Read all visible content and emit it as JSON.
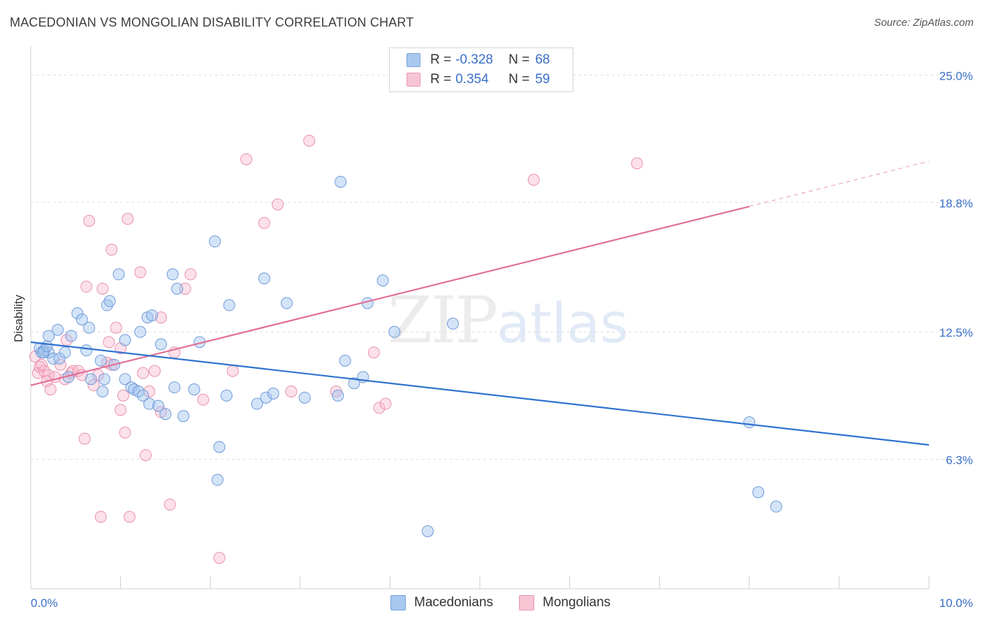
{
  "header": {
    "title": "MACEDONIAN VS MONGOLIAN DISABILITY CORRELATION CHART",
    "source": "Source: ZipAtlas.com"
  },
  "watermark": {
    "zip": "ZIP",
    "atlas": "atlas"
  },
  "legend": {
    "rows": [
      {
        "r_label": "R =",
        "r_value": "-0.328",
        "n_label": "N =",
        "n_value": "68",
        "color": "#a8c8f0"
      },
      {
        "r_label": "R =",
        "r_value": "0.354",
        "n_label": "N =",
        "n_value": "59",
        "color": "#f7b8cb"
      }
    ]
  },
  "bottom_legend": [
    {
      "label": "Macedonians",
      "color": "#a8c8f0"
    },
    {
      "label": "Mongolians",
      "color": "#f7b8cb"
    }
  ],
  "colors": {
    "blue_fill": "rgba(160,195,240,0.45)",
    "blue_stroke": "#6f9ad8",
    "blue_line": "#2f72d0",
    "pink_fill": "rgba(247,180,202,0.40)",
    "pink_stroke": "#e891ad",
    "pink_line": "#e07096",
    "tick_label": "#3a6fc8",
    "grid": "#dedede"
  },
  "chart_data": {
    "type": "scatter",
    "title": "MACEDONIAN VS MONGOLIAN DISABILITY CORRELATION CHART",
    "xlabel": "",
    "ylabel": "Disability",
    "xlim": [
      0,
      10
    ],
    "ylim": [
      0,
      26.2
    ],
    "x_tick_labels": [
      "0.0%",
      "10.0%"
    ],
    "y_ticks": [
      6.3,
      12.5,
      18.8,
      25.0
    ],
    "y_tick_labels": [
      "6.3%",
      "12.5%",
      "18.8%",
      "25.0%"
    ],
    "grid": true,
    "legend_position": "top-center",
    "series": [
      {
        "name": "Macedonians",
        "trend": {
          "x": [
            0.0,
            10.0
          ],
          "y": [
            12.0,
            7.0
          ]
        },
        "points": [
          [
            0.1,
            11.7
          ],
          [
            0.12,
            11.5
          ],
          [
            0.15,
            11.6
          ],
          [
            0.2,
            12.3
          ],
          [
            0.2,
            11.5
          ],
          [
            0.25,
            11.2
          ],
          [
            0.3,
            12.6
          ],
          [
            0.32,
            11.2
          ],
          [
            0.38,
            11.5
          ],
          [
            0.42,
            10.3
          ],
          [
            0.45,
            12.3
          ],
          [
            0.52,
            13.4
          ],
          [
            0.57,
            13.1
          ],
          [
            0.62,
            11.6
          ],
          [
            0.65,
            12.7
          ],
          [
            0.67,
            10.2
          ],
          [
            0.78,
            11.1
          ],
          [
            0.8,
            9.6
          ],
          [
            0.82,
            10.2
          ],
          [
            0.85,
            13.8
          ],
          [
            0.88,
            14.0
          ],
          [
            0.93,
            10.9
          ],
          [
            0.98,
            15.3
          ],
          [
            1.05,
            12.1
          ],
          [
            1.05,
            10.2
          ],
          [
            1.12,
            9.8
          ],
          [
            1.15,
            9.7
          ],
          [
            1.2,
            9.6
          ],
          [
            1.22,
            12.5
          ],
          [
            1.25,
            9.4
          ],
          [
            1.3,
            13.2
          ],
          [
            1.32,
            9.0
          ],
          [
            1.35,
            13.3
          ],
          [
            1.42,
            8.9
          ],
          [
            1.45,
            11.9
          ],
          [
            1.5,
            8.5
          ],
          [
            1.58,
            15.3
          ],
          [
            1.6,
            9.8
          ],
          [
            1.63,
            14.6
          ],
          [
            1.7,
            8.4
          ],
          [
            1.82,
            9.7
          ],
          [
            1.88,
            12.0
          ],
          [
            2.05,
            16.9
          ],
          [
            2.08,
            5.3
          ],
          [
            2.1,
            6.9
          ],
          [
            2.18,
            9.4
          ],
          [
            2.21,
            13.8
          ],
          [
            2.52,
            9.0
          ],
          [
            2.6,
            15.1
          ],
          [
            2.62,
            9.3
          ],
          [
            2.7,
            9.5
          ],
          [
            2.85,
            13.9
          ],
          [
            3.05,
            9.3
          ],
          [
            3.42,
            9.4
          ],
          [
            3.45,
            19.8
          ],
          [
            3.5,
            11.1
          ],
          [
            3.6,
            10.0
          ],
          [
            3.7,
            10.3
          ],
          [
            3.75,
            13.9
          ],
          [
            3.92,
            15.0
          ],
          [
            4.05,
            12.5
          ],
          [
            4.42,
            2.8
          ],
          [
            4.7,
            12.9
          ],
          [
            8.0,
            8.1
          ],
          [
            8.1,
            4.7
          ],
          [
            8.3,
            4.0
          ],
          [
            0.14,
            11.5
          ],
          [
            0.18,
            11.8
          ]
        ]
      },
      {
        "name": "Mongolians",
        "trend": {
          "x": [
            0.0,
            8.0
          ],
          "y": [
            9.9,
            18.6
          ]
        },
        "trend_dashed": {
          "x": [
            8.0,
            10.0
          ],
          "y": [
            18.6,
            20.8
          ]
        },
        "points": [
          [
            0.05,
            11.3
          ],
          [
            0.08,
            10.5
          ],
          [
            0.1,
            10.8
          ],
          [
            0.15,
            10.6
          ],
          [
            0.2,
            10.4
          ],
          [
            0.22,
            9.7
          ],
          [
            0.27,
            10.3
          ],
          [
            0.33,
            10.9
          ],
          [
            0.38,
            10.2
          ],
          [
            0.4,
            12.1
          ],
          [
            0.45,
            10.5
          ],
          [
            0.47,
            10.6
          ],
          [
            0.53,
            10.6
          ],
          [
            0.57,
            10.4
          ],
          [
            0.6,
            7.3
          ],
          [
            0.62,
            14.7
          ],
          [
            0.65,
            17.9
          ],
          [
            0.7,
            9.9
          ],
          [
            0.75,
            10.4
          ],
          [
            0.78,
            3.5
          ],
          [
            0.8,
            14.6
          ],
          [
            0.85,
            11.0
          ],
          [
            0.87,
            12.0
          ],
          [
            0.9,
            16.5
          ],
          [
            0.9,
            10.9
          ],
          [
            0.95,
            12.7
          ],
          [
            1.0,
            11.7
          ],
          [
            1.0,
            8.7
          ],
          [
            1.05,
            7.6
          ],
          [
            1.08,
            18.0
          ],
          [
            1.1,
            3.5
          ],
          [
            1.22,
            15.4
          ],
          [
            1.25,
            10.5
          ],
          [
            1.28,
            6.5
          ],
          [
            1.32,
            9.6
          ],
          [
            1.38,
            10.6
          ],
          [
            1.45,
            13.2
          ],
          [
            1.45,
            8.6
          ],
          [
            1.55,
            4.1
          ],
          [
            1.6,
            11.5
          ],
          [
            1.72,
            14.6
          ],
          [
            1.78,
            15.3
          ],
          [
            1.92,
            9.2
          ],
          [
            2.1,
            1.5
          ],
          [
            2.25,
            10.6
          ],
          [
            2.4,
            20.9
          ],
          [
            2.6,
            17.8
          ],
          [
            2.75,
            18.7
          ],
          [
            2.9,
            9.6
          ],
          [
            3.1,
            21.8
          ],
          [
            3.4,
            9.6
          ],
          [
            3.82,
            11.5
          ],
          [
            3.88,
            8.8
          ],
          [
            3.95,
            9.0
          ],
          [
            5.6,
            19.9
          ],
          [
            6.75,
            20.7
          ],
          [
            0.12,
            10.9
          ],
          [
            0.18,
            10.1
          ],
          [
            1.03,
            9.4
          ]
        ]
      }
    ]
  }
}
